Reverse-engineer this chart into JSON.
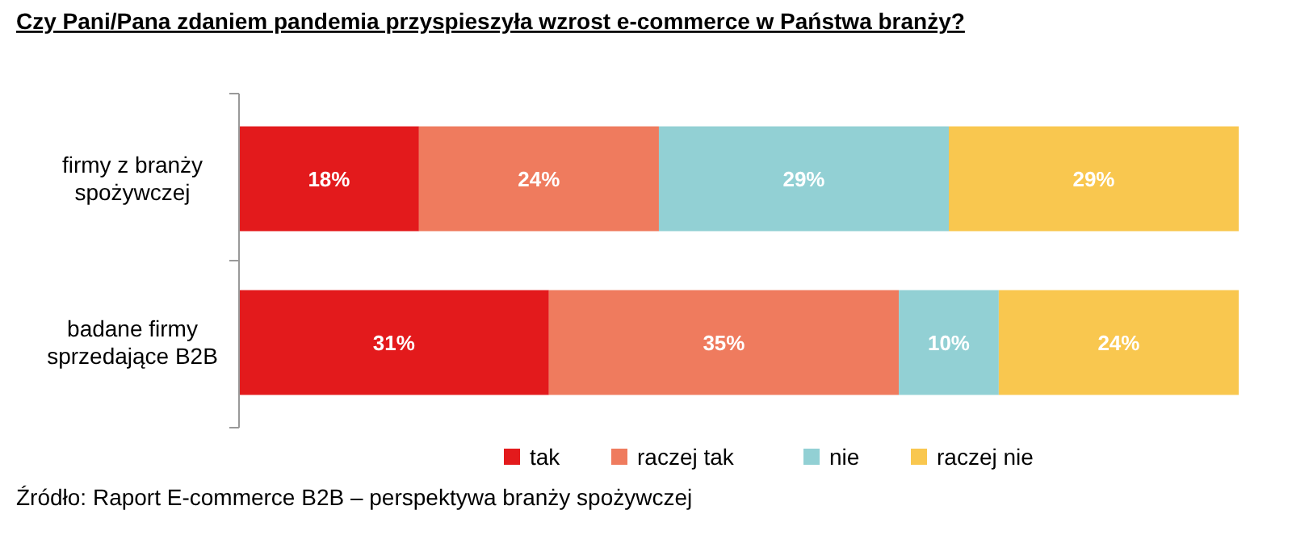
{
  "chart_data": {
    "type": "bar",
    "orientation": "horizontal",
    "stacked": true,
    "title": "Czy Pani/Pana zdaniem pandemia przyspieszyła wzrost e-commerce w Państwa branży?",
    "categories": [
      "firmy z branży spożywczej",
      "badane firmy sprzedające B2B"
    ],
    "series": [
      {
        "name": "tak",
        "color": "#e31a1c",
        "values": [
          18,
          31
        ],
        "value_labels": [
          "18%",
          "31%"
        ]
      },
      {
        "name": "raczej tak",
        "color": "#ef7b5e",
        "values": [
          24,
          35
        ],
        "value_labels": [
          "24%",
          "35%"
        ]
      },
      {
        "name": "nie",
        "color": "#92d0d4",
        "values": [
          29,
          10
        ],
        "value_labels": [
          "29%",
          "10%"
        ]
      },
      {
        "name": "raczej nie",
        "color": "#f9c74f",
        "values": [
          29,
          24
        ],
        "value_labels": [
          "29%",
          "24%"
        ]
      }
    ],
    "legend": "bottom",
    "tick_labels": "y",
    "annotations": [
      "Źródło: Raport E-commerce B2B – perspektywa branży spożywczej"
    ]
  }
}
